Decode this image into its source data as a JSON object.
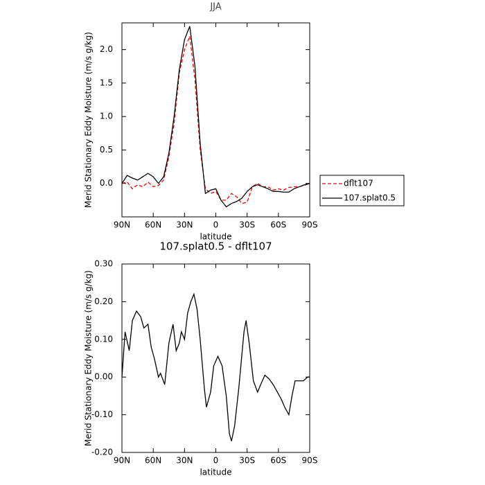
{
  "chart_data": [
    {
      "type": "line",
      "title": "JJA",
      "x_label": "latitude",
      "y_label": "Merid Stationary Eddy Moisture (m/s g/kg)",
      "x": [
        90,
        85,
        80,
        75,
        70,
        65,
        60,
        55,
        50,
        45,
        40,
        35,
        30,
        25,
        20,
        15,
        10,
        5,
        0,
        -5,
        -10,
        -15,
        -20,
        -25,
        -30,
        -35,
        -40,
        -45,
        -50,
        -55,
        -60,
        -65,
        -70,
        -75,
        -80,
        -85,
        -90
      ],
      "series": [
        {
          "name": "dflt107",
          "color": "#ff0000",
          "dashed": true,
          "values": [
            0.0,
            0.02,
            -0.08,
            -0.02,
            -0.05,
            0.02,
            -0.05,
            -0.03,
            0.05,
            0.4,
            0.9,
            1.65,
            2.0,
            2.2,
            1.55,
            0.5,
            -0.08,
            -0.15,
            -0.12,
            -0.25,
            -0.25,
            -0.15,
            -0.2,
            -0.3,
            -0.28,
            -0.05,
            0.0,
            -0.05,
            -0.05,
            -0.1,
            -0.08,
            -0.1,
            -0.06,
            -0.05,
            -0.05,
            -0.03,
            0.0
          ]
        },
        {
          "name": "107.splat0.5",
          "color": "#000000",
          "dashed": false,
          "values": [
            0.0,
            0.12,
            0.08,
            0.05,
            0.1,
            0.15,
            0.1,
            0.0,
            0.1,
            0.45,
            1.0,
            1.7,
            2.15,
            2.35,
            1.75,
            0.6,
            -0.15,
            -0.1,
            -0.08,
            -0.25,
            -0.35,
            -0.3,
            -0.27,
            -0.22,
            -0.12,
            -0.05,
            -0.02,
            -0.05,
            -0.08,
            -0.12,
            -0.12,
            -0.13,
            -0.13,
            -0.08,
            -0.05,
            -0.02,
            0.0
          ]
        }
      ],
      "xlim": [
        90,
        -90
      ],
      "xticks": [
        {
          "value": 90,
          "label": "90N"
        },
        {
          "value": 60,
          "label": "60N"
        },
        {
          "value": 30,
          "label": "30N"
        },
        0,
        {
          "value": -30,
          "label": "30S"
        },
        {
          "value": -60,
          "label": "60S"
        },
        {
          "value": -90,
          "label": "90S"
        }
      ],
      "ylim": [
        -0.5,
        2.4
      ],
      "yticks": [
        {
          "value": 0,
          "label": "0.0"
        },
        {
          "value": 0.5,
          "label": "0.5"
        },
        {
          "value": 1,
          "label": "1.0"
        },
        {
          "value": 1.5,
          "label": "1.5"
        },
        {
          "value": 2,
          "label": "2.0"
        }
      ],
      "legend": "right"
    },
    {
      "type": "line",
      "title": "107.splat0.5 - dflt107",
      "x_label": "latitude",
      "y_label": "Merid Stationary Eddy Moisture (m/s g/kg)",
      "x": [
        90,
        87,
        83,
        80,
        76,
        72,
        69,
        65,
        62,
        59,
        55,
        53,
        49,
        45,
        41,
        38,
        35,
        33,
        30,
        27,
        24,
        21,
        18,
        15,
        11,
        9,
        5,
        2,
        -2,
        -6,
        -10,
        -13,
        -15,
        -18,
        -22,
        -27,
        -29,
        -32,
        -36,
        -40,
        -43,
        -47,
        -51,
        -55,
        -59,
        -63,
        -66,
        -70,
        -73,
        -76,
        -80,
        -84,
        -88,
        -90
      ],
      "values": [
        0,
        0.12,
        0.07,
        0.15,
        0.175,
        0.16,
        0.13,
        0.14,
        0.08,
        0.05,
        0.0,
        0.01,
        -0.02,
        0.09,
        0.14,
        0.07,
        0.09,
        0.12,
        0.1,
        0.17,
        0.2,
        0.22,
        0.18,
        0.1,
        -0.03,
        -0.08,
        -0.04,
        0.03,
        0.055,
        0.03,
        -0.05,
        -0.15,
        -0.17,
        -0.13,
        -0.03,
        0.12,
        0.15,
        0.09,
        -0.01,
        -0.04,
        -0.02,
        0.005,
        -0.005,
        -0.02,
        -0.04,
        -0.06,
        -0.08,
        -0.1,
        -0.05,
        -0.01,
        -0.01,
        -0.01,
        0.0,
        0.0
      ],
      "color": "#000000",
      "xlim": [
        90,
        -90
      ],
      "xticks": [
        {
          "value": 90,
          "label": "90N"
        },
        {
          "value": 60,
          "label": "60N"
        },
        {
          "value": 30,
          "label": "30N"
        },
        0,
        {
          "value": -30,
          "label": "30S"
        },
        {
          "value": -60,
          "label": "60S"
        },
        {
          "value": -90,
          "label": "90S"
        }
      ],
      "ylim": [
        -0.2,
        0.3
      ],
      "yticks": [
        {
          "value": -0.2,
          "label": "-0.20"
        },
        {
          "value": -0.1,
          "label": "-0.10"
        },
        {
          "value": 0,
          "label": "0.00"
        },
        {
          "value": 0.1,
          "label": "0.10"
        },
        {
          "value": 0.2,
          "label": "0.20"
        },
        {
          "value": 0.3,
          "label": "0.30"
        }
      ]
    }
  ]
}
